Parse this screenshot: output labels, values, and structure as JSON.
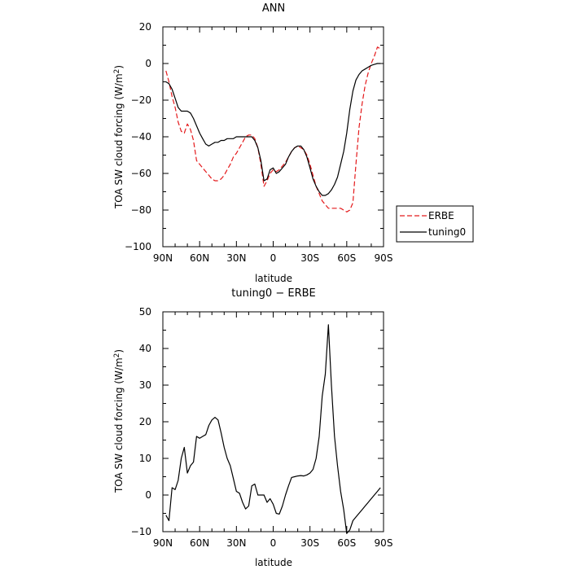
{
  "chart_data": [
    {
      "type": "line",
      "title": "ANN",
      "xlabel": "latitude",
      "ylabel": "TOA SW cloud forcing (W/m²)",
      "ylabel_parts": {
        "main": "TOA SW cloud forcing (W/m",
        "sup": "2",
        "end": ")"
      },
      "xlim": [
        90,
        -90
      ],
      "ylim": [
        -100,
        20
      ],
      "x_ticks": [
        90,
        60,
        30,
        0,
        -30,
        -60,
        -90
      ],
      "x_tick_labels": [
        "90N",
        "60N",
        "30N",
        "0",
        "30S",
        "60S",
        "90S"
      ],
      "y_ticks": [
        -100,
        -80,
        -60,
        -40,
        -20,
        0,
        20
      ],
      "y_tick_labels": [
        "−100",
        "−80",
        "−60",
        "−40",
        "−20",
        "0",
        "20"
      ],
      "legend": {
        "placement": "outside-right",
        "entries": [
          {
            "label": "ERBE",
            "color": "#e41a1c",
            "dash": "dashed"
          },
          {
            "label": "tuning0",
            "color": "#000000",
            "dash": "solid"
          }
        ]
      },
      "series": [
        {
          "name": "ERBE",
          "color": "#e41a1c",
          "dash": "dashed",
          "x": [
            87.5,
            85,
            82.5,
            80,
            77.5,
            75,
            72.5,
            70,
            67.5,
            65,
            62.5,
            60,
            57.5,
            55,
            52.5,
            50,
            47.5,
            45,
            42.5,
            40,
            37.5,
            35,
            32.5,
            30,
            27.5,
            25,
            22.5,
            20,
            17.5,
            15,
            12.5,
            10,
            7.5,
            5,
            2.5,
            0,
            -2.5,
            -5,
            -7.5,
            -10,
            -12.5,
            -15,
            -17.5,
            -20,
            -22.5,
            -25,
            -27.5,
            -30,
            -32.5,
            -35,
            -37.5,
            -40,
            -42.5,
            -45,
            -47.5,
            -50,
            -52.5,
            -55,
            -57.5,
            -60,
            -62.5,
            -65,
            -67.5,
            -70,
            -72.5,
            -75,
            -77.5,
            -80,
            -82.5,
            -85,
            -87.5
          ],
          "values": [
            -4,
            -10,
            -18,
            -24,
            -32,
            -37,
            -38,
            -33,
            -36,
            -42,
            -53,
            -55,
            -57,
            -59,
            -61,
            -63,
            -64,
            -64,
            -63,
            -61,
            -58,
            -55,
            -51,
            -49,
            -46,
            -43,
            -40,
            -39,
            -39,
            -41,
            -46,
            -55,
            -67,
            -64,
            -60,
            -58,
            -59,
            -58,
            -56,
            -54,
            -51,
            -48,
            -46,
            -45,
            -46,
            -47,
            -50,
            -55,
            -61,
            -67,
            -71,
            -75,
            -77,
            -79,
            -79,
            -79,
            -79,
            -79,
            -80,
            -81,
            -80,
            -76,
            -55,
            -35,
            -22,
            -12,
            -5,
            0,
            4,
            9,
            8
          ]
        },
        {
          "name": "tuning0",
          "color": "#000000",
          "dash": "solid",
          "x": [
            87.5,
            85,
            82.5,
            80,
            77.5,
            75,
            72.5,
            70,
            67.5,
            65,
            62.5,
            60,
            57.5,
            55,
            52.5,
            50,
            47.5,
            45,
            42.5,
            40,
            37.5,
            35,
            32.5,
            30,
            27.5,
            25,
            22.5,
            20,
            17.5,
            15,
            12.5,
            10,
            7.5,
            5,
            2.5,
            0,
            -2.5,
            -5,
            -7.5,
            -10,
            -12.5,
            -15,
            -17.5,
            -20,
            -22.5,
            -25,
            -27.5,
            -30,
            -32.5,
            -35,
            -37.5,
            -40,
            -42.5,
            -45,
            -47.5,
            -50,
            -52.5,
            -55,
            -57.5,
            -60,
            -62.5,
            -65,
            -67.5,
            -70,
            -72.5,
            -75,
            -77.5,
            -80,
            -82.5,
            -85,
            -87.5
          ],
          "values": [
            -10,
            -11,
            -14,
            -19,
            -24,
            -26,
            -26,
            -26,
            -27,
            -30,
            -34,
            -38,
            -41,
            -44,
            -45,
            -44,
            -43,
            -43,
            -42,
            -42,
            -41,
            -41,
            -41,
            -40,
            -40,
            -40,
            -40,
            -40,
            -40,
            -42,
            -46,
            -53,
            -64,
            -63,
            -58,
            -57,
            -60,
            -59,
            -57,
            -55,
            -51,
            -48,
            -46,
            -45,
            -45,
            -47,
            -51,
            -57,
            -63,
            -67,
            -70,
            -72,
            -72,
            -71,
            -69,
            -66,
            -62,
            -55,
            -48,
            -38,
            -25,
            -15,
            -9,
            -6,
            -4,
            -3,
            -2,
            -1,
            -0.5,
            0,
            0
          ]
        }
      ]
    },
    {
      "type": "line",
      "title": "tuning0 − ERBE",
      "xlabel": "latitude",
      "ylabel": "TOA SW cloud forcing (W/m²)",
      "ylabel_parts": {
        "main": "TOA SW cloud forcing (W/m",
        "sup": "2",
        "end": ")"
      },
      "xlim": [
        90,
        -90
      ],
      "ylim": [
        -10,
        50
      ],
      "x_ticks": [
        90,
        60,
        30,
        0,
        -30,
        -60,
        -90
      ],
      "x_tick_labels": [
        "90N",
        "60N",
        "30N",
        "0",
        "30S",
        "60S",
        "90S"
      ],
      "y_ticks": [
        -10,
        0,
        10,
        20,
        30,
        40,
        50
      ],
      "y_tick_labels": [
        "−10",
        "0",
        "10",
        "20",
        "30",
        "40",
        "50"
      ],
      "series": [
        {
          "color": "#000000",
          "dash": "solid",
          "x": [
            87.5,
            85,
            82.5,
            80,
            77.5,
            75,
            72.5,
            70,
            67.5,
            65,
            62.5,
            60,
            57.5,
            55,
            52.5,
            50,
            47.5,
            45,
            42.5,
            40,
            37.5,
            35,
            32.5,
            30,
            27.5,
            25,
            22.5,
            20,
            17.5,
            15,
            12.5,
            10,
            7.5,
            5,
            2.5,
            0,
            -2.5,
            -5,
            -7.5,
            -10,
            -12.5,
            -15,
            -17.5,
            -20,
            -22.5,
            -25,
            -27.5,
            -30,
            -32.5,
            -35,
            -37.5,
            -40,
            -42.5,
            -45,
            -47.5,
            -50,
            -52.5,
            -55,
            -57.5,
            -60,
            -62.5,
            -65,
            -67.5,
            -70,
            -72.5,
            -75,
            -77.5,
            -80,
            -82.5,
            -85,
            -87.5
          ],
          "values": [
            -5.5,
            -7,
            2,
            1.5,
            4,
            10,
            13,
            6,
            8,
            9,
            16,
            15.5,
            16,
            16.5,
            19,
            20.5,
            21.2,
            20.5,
            17,
            13,
            10,
            8,
            4.5,
            1,
            0.5,
            -2,
            -3.8,
            -3,
            2.5,
            3,
            0,
            0,
            0,
            -2,
            -1,
            -2.5,
            -5,
            -5.2,
            -3,
            0,
            2.5,
            4.8,
            5,
            5.2,
            5.3,
            5.2,
            5.5,
            6,
            7,
            10,
            16,
            27,
            33,
            46.5,
            30,
            16,
            8,
            1,
            -4,
            -10.5,
            -9.5,
            -7,
            -6,
            -5,
            -4,
            -3,
            -2,
            -1,
            0,
            1,
            2
          ]
        }
      ]
    }
  ]
}
